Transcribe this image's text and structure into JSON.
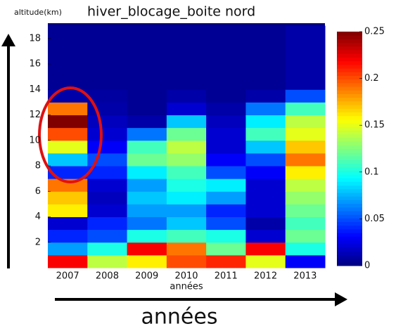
{
  "chart_data": {
    "type": "heatmap",
    "title": "hiver_blocage_boite nord",
    "y_label": "altitude(km)",
    "x_label": "années",
    "annotation": "années",
    "categories": [
      "2007",
      "2008",
      "2009",
      "2010",
      "2011",
      "2012",
      "2013"
    ],
    "bins": [
      0,
      1,
      2,
      3,
      4,
      5,
      6,
      7,
      8,
      9,
      10,
      11,
      12,
      13,
      14,
      15,
      16,
      17,
      18,
      19
    ],
    "values": [
      [
        0.22,
        0.07,
        0.04,
        0.02,
        0.16,
        0.17,
        0.19,
        0.04,
        0.08,
        0.15,
        0.2,
        0.25,
        0.19,
        0.01,
        0.005,
        0.005,
        0.005,
        0.005,
        0.005
      ],
      [
        0.14,
        0.1,
        0.05,
        0.04,
        0.02,
        0.015,
        0.02,
        0.04,
        0.05,
        0.03,
        0.02,
        0.015,
        0.01,
        0.008,
        0.005,
        0.005,
        0.005,
        0.005,
        0.005
      ],
      [
        0.16,
        0.22,
        0.1,
        0.06,
        0.07,
        0.08,
        0.07,
        0.09,
        0.12,
        0.11,
        0.06,
        0.01,
        0.005,
        0.005,
        0.005,
        0.005,
        0.005,
        0.005,
        0.005
      ],
      [
        0.2,
        0.19,
        0.11,
        0.08,
        0.07,
        0.09,
        0.1,
        0.11,
        0.13,
        0.14,
        0.12,
        0.08,
        0.02,
        0.01,
        0.005,
        0.005,
        0.005,
        0.005,
        0.005
      ],
      [
        0.21,
        0.12,
        0.1,
        0.05,
        0.04,
        0.07,
        0.09,
        0.05,
        0.03,
        0.02,
        0.02,
        0.015,
        0.01,
        0.005,
        0.005,
        0.005,
        0.005,
        0.005,
        0.005
      ],
      [
        0.15,
        0.22,
        0.02,
        0.01,
        0.02,
        0.02,
        0.02,
        0.03,
        0.05,
        0.08,
        0.11,
        0.09,
        0.06,
        0.01,
        0.005,
        0.005,
        0.005,
        0.005,
        0.005
      ],
      [
        0.03,
        0.1,
        0.12,
        0.11,
        0.12,
        0.13,
        0.14,
        0.16,
        0.19,
        0.17,
        0.15,
        0.14,
        0.11,
        0.05,
        0.01,
        0.01,
        0.01,
        0.01,
        0.01
      ]
    ],
    "ylim": [
      0,
      19.2
    ],
    "yticks": [
      2,
      4,
      6,
      8,
      10,
      12,
      14,
      16,
      18
    ],
    "colormap": "jet",
    "clim": [
      0,
      0.25
    ],
    "cticks": [
      0,
      0.05,
      0.1,
      0.15,
      0.2,
      0.25
    ]
  }
}
